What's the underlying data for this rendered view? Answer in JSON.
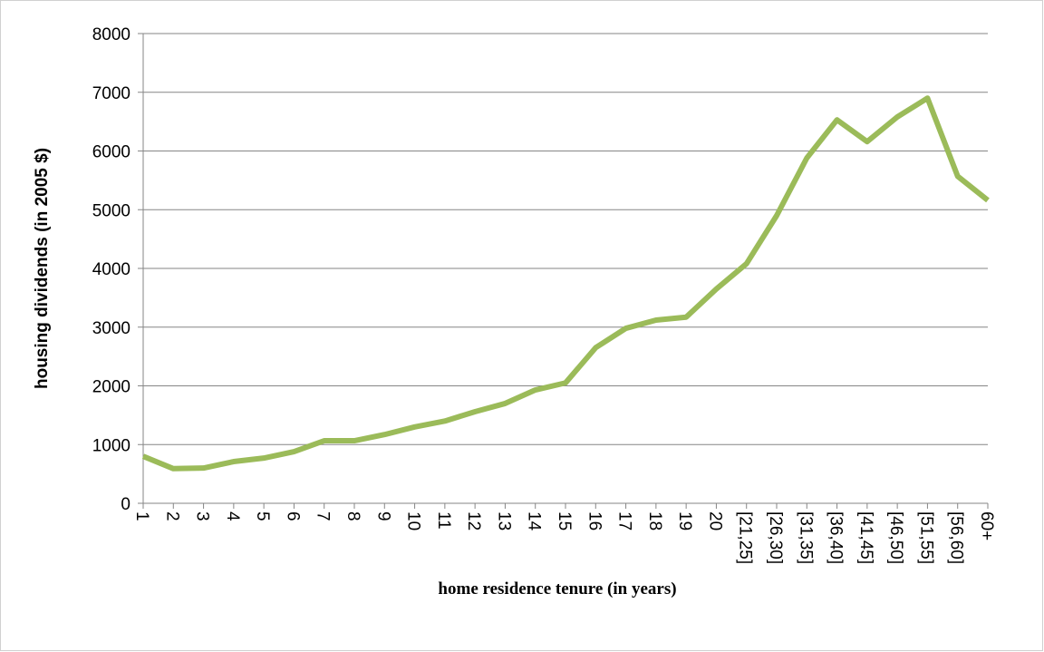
{
  "chart_data": {
    "type": "line",
    "x_label": "home residence tenure (in years)",
    "y_label": "housing dividends (in 2005 $)",
    "categories": [
      "1",
      "2",
      "3",
      "4",
      "5",
      "6",
      "7",
      "8",
      "9",
      "10",
      "11",
      "12",
      "13",
      "14",
      "15",
      "16",
      "17",
      "18",
      "19",
      "20",
      "[21,25]",
      "[26,30]",
      "[31,35]",
      "[36,40]",
      "[41,45]",
      "[46,50]",
      "[51,55]",
      "[56,60]",
      "60+"
    ],
    "series": [
      {
        "color": "#9bbb59",
        "values": [
          800,
          590,
          600,
          710,
          770,
          880,
          1065,
          1065,
          1170,
          1300,
          1400,
          1560,
          1700,
          1930,
          2050,
          2650,
          2980,
          3120,
          3170,
          3650,
          4080,
          4900,
          5880,
          6530,
          6160,
          6580,
          6900,
          5570,
          5160
        ]
      }
    ],
    "ylim": [
      0,
      8000
    ],
    "yticks": [
      0,
      1000,
      2000,
      3000,
      4000,
      5000,
      6000,
      7000,
      8000
    ],
    "grid": true
  }
}
